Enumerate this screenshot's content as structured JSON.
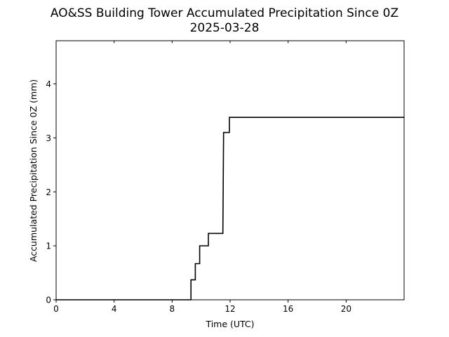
{
  "chart_data": {
    "type": "line",
    "title": "AO&SS Building Tower Accumulated Precipitation Since 0Z",
    "subtitle": "2025-03-28",
    "xlabel": "Time (UTC)",
    "ylabel": "Accumulated Precipitation Since 0Z (mm)",
    "xlim": [
      0,
      24
    ],
    "ylim": [
      0,
      4.8
    ],
    "x_ticks": [
      0,
      4,
      8,
      12,
      16,
      20
    ],
    "x_tick_labels": [
      "0",
      "4",
      "8",
      "12",
      "16",
      "20"
    ],
    "y_ticks": [
      0,
      1,
      2,
      3,
      4
    ],
    "y_tick_labels": [
      "0",
      "1",
      "2",
      "3",
      "4"
    ],
    "grid": false,
    "legend": "none",
    "line_color": "#000000",
    "series": [
      {
        "x": [
          0,
          9.3,
          9.3,
          9.6,
          9.6,
          9.9,
          9.9,
          10.5,
          10.5,
          11.5,
          11.55,
          11.95,
          11.95,
          24
        ],
        "y": [
          0,
          0,
          0.37,
          0.37,
          0.67,
          0.67,
          1.0,
          1.0,
          1.23,
          1.23,
          3.1,
          3.1,
          3.38,
          3.38
        ]
      }
    ]
  }
}
